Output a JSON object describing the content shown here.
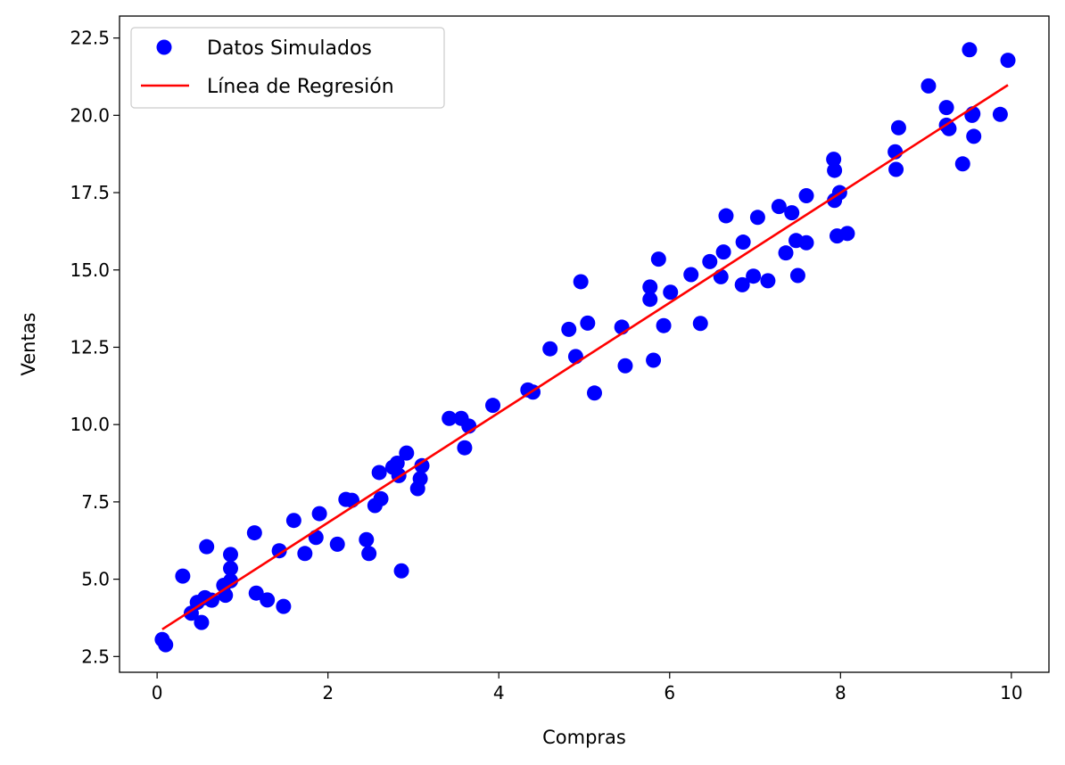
{
  "chart_data": {
    "type": "scatter",
    "title": "",
    "xlabel": "Compras",
    "ylabel": "Ventas",
    "xlim": [
      -0.44,
      10.44
    ],
    "ylim": [
      1.99,
      23.21
    ],
    "xticks": [
      0,
      2,
      4,
      6,
      8,
      10
    ],
    "yticks": [
      2.5,
      5.0,
      7.5,
      10.0,
      12.5,
      15.0,
      17.5,
      20.0,
      22.5
    ],
    "xtick_labels": [
      "0",
      "2",
      "4",
      "6",
      "8",
      "10"
    ],
    "ytick_labels": [
      "2.5",
      "5.0",
      "7.5",
      "10.0",
      "12.5",
      "15.0",
      "17.5",
      "20.0",
      "22.5"
    ],
    "grid": false,
    "legend": {
      "placement": "top-left",
      "entries": [
        "Datos Simulados",
        "Línea de Regresión"
      ]
    },
    "series": [
      {
        "name": "Datos Simulados",
        "kind": "scatter",
        "color": "#0000ff",
        "points": [
          [
            0.06,
            3.05
          ],
          [
            0.1,
            2.88
          ],
          [
            0.3,
            5.1
          ],
          [
            0.4,
            3.9
          ],
          [
            0.47,
            4.25
          ],
          [
            0.52,
            3.6
          ],
          [
            0.56,
            4.4
          ],
          [
            0.58,
            6.05
          ],
          [
            0.64,
            4.32
          ],
          [
            0.78,
            4.8
          ],
          [
            0.8,
            4.48
          ],
          [
            0.86,
            5.8
          ],
          [
            0.86,
            5.35
          ],
          [
            0.86,
            4.95
          ],
          [
            1.14,
            6.5
          ],
          [
            1.16,
            4.55
          ],
          [
            1.29,
            4.33
          ],
          [
            1.43,
            5.92
          ],
          [
            1.48,
            4.12
          ],
          [
            1.6,
            6.9
          ],
          [
            1.73,
            5.83
          ],
          [
            1.86,
            6.35
          ],
          [
            1.9,
            7.12
          ],
          [
            2.11,
            6.13
          ],
          [
            2.21,
            7.58
          ],
          [
            2.28,
            7.55
          ],
          [
            2.45,
            6.28
          ],
          [
            2.48,
            5.83
          ],
          [
            2.55,
            7.38
          ],
          [
            2.62,
            7.6
          ],
          [
            2.6,
            8.45
          ],
          [
            2.76,
            8.62
          ],
          [
            2.81,
            8.75
          ],
          [
            2.83,
            8.35
          ],
          [
            2.86,
            5.27
          ],
          [
            2.92,
            9.08
          ],
          [
            3.05,
            7.93
          ],
          [
            3.08,
            8.25
          ],
          [
            3.1,
            8.67
          ],
          [
            3.42,
            10.2
          ],
          [
            3.56,
            10.2
          ],
          [
            3.6,
            9.25
          ],
          [
            3.65,
            9.95
          ],
          [
            3.93,
            10.62
          ],
          [
            4.34,
            11.12
          ],
          [
            4.4,
            11.05
          ],
          [
            4.6,
            12.45
          ],
          [
            4.82,
            13.08
          ],
          [
            4.9,
            12.2
          ],
          [
            4.96,
            14.62
          ],
          [
            5.04,
            13.28
          ],
          [
            5.12,
            11.02
          ],
          [
            5.44,
            13.15
          ],
          [
            5.48,
            11.9
          ],
          [
            5.77,
            14.45
          ],
          [
            5.77,
            14.05
          ],
          [
            5.81,
            12.08
          ],
          [
            5.87,
            15.35
          ],
          [
            5.93,
            13.2
          ],
          [
            6.01,
            14.28
          ],
          [
            6.25,
            14.85
          ],
          [
            6.36,
            13.27
          ],
          [
            6.47,
            15.27
          ],
          [
            6.6,
            14.78
          ],
          [
            6.63,
            15.58
          ],
          [
            6.66,
            16.75
          ],
          [
            6.85,
            14.52
          ],
          [
            6.86,
            15.9
          ],
          [
            6.98,
            14.8
          ],
          [
            7.03,
            16.7
          ],
          [
            7.15,
            14.65
          ],
          [
            7.28,
            17.05
          ],
          [
            7.36,
            15.55
          ],
          [
            7.43,
            16.85
          ],
          [
            7.48,
            15.95
          ],
          [
            7.5,
            14.82
          ],
          [
            7.6,
            17.4
          ],
          [
            7.6,
            15.88
          ],
          [
            7.92,
            18.58
          ],
          [
            7.93,
            18.22
          ],
          [
            7.93,
            17.25
          ],
          [
            7.96,
            16.1
          ],
          [
            7.99,
            17.5
          ],
          [
            8.08,
            16.18
          ],
          [
            8.64,
            18.82
          ],
          [
            8.65,
            18.25
          ],
          [
            8.68,
            19.6
          ],
          [
            9.03,
            20.95
          ],
          [
            9.24,
            20.25
          ],
          [
            9.24,
            19.68
          ],
          [
            9.27,
            19.57
          ],
          [
            9.43,
            18.43
          ],
          [
            9.51,
            22.12
          ],
          [
            9.54,
            20.0
          ],
          [
            9.55,
            20.05
          ],
          [
            9.56,
            19.32
          ],
          [
            9.87,
            20.03
          ],
          [
            9.96,
            21.78
          ]
        ]
      },
      {
        "name": "Línea de Regresión",
        "kind": "line",
        "color": "#ff0000",
        "points": [
          [
            0.06,
            3.38
          ],
          [
            9.96,
            20.98
          ]
        ]
      }
    ]
  }
}
